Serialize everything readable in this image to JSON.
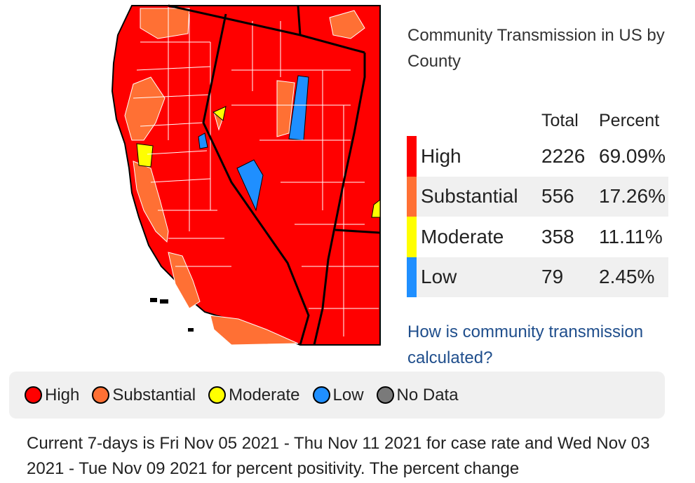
{
  "panel": {
    "title": "Community Transmission in US by County",
    "headers": {
      "total": "Total",
      "percent": "Percent"
    },
    "rows": [
      {
        "level": "High",
        "total": "2226",
        "percent": "69.09%",
        "color": "#ff0000"
      },
      {
        "level": "Substantial",
        "total": "556",
        "percent": "17.26%",
        "color": "#ff7034"
      },
      {
        "level": "Moderate",
        "total": "358",
        "percent": "11.11%",
        "color": "#ffff00"
      },
      {
        "level": "Low",
        "total": "79",
        "percent": "2.45%",
        "color": "#1f8fff"
      }
    ],
    "link_text": "How is community transmission calculated?"
  },
  "legend": [
    {
      "label": "High",
      "color": "#ff0000"
    },
    {
      "label": "Substantial",
      "color": "#ff7034"
    },
    {
      "label": "Moderate",
      "color": "#ffff00"
    },
    {
      "label": "Low",
      "color": "#1f8fff"
    },
    {
      "label": "No Data",
      "color": "#7a7a7a"
    }
  ],
  "footnote": "Current 7-days is Fri Nov 05 2021 - Thu Nov 11 2021 for case rate and Wed Nov 03 2021 - Tue Nov 09 2021 for percent positivity. The percent change"
}
